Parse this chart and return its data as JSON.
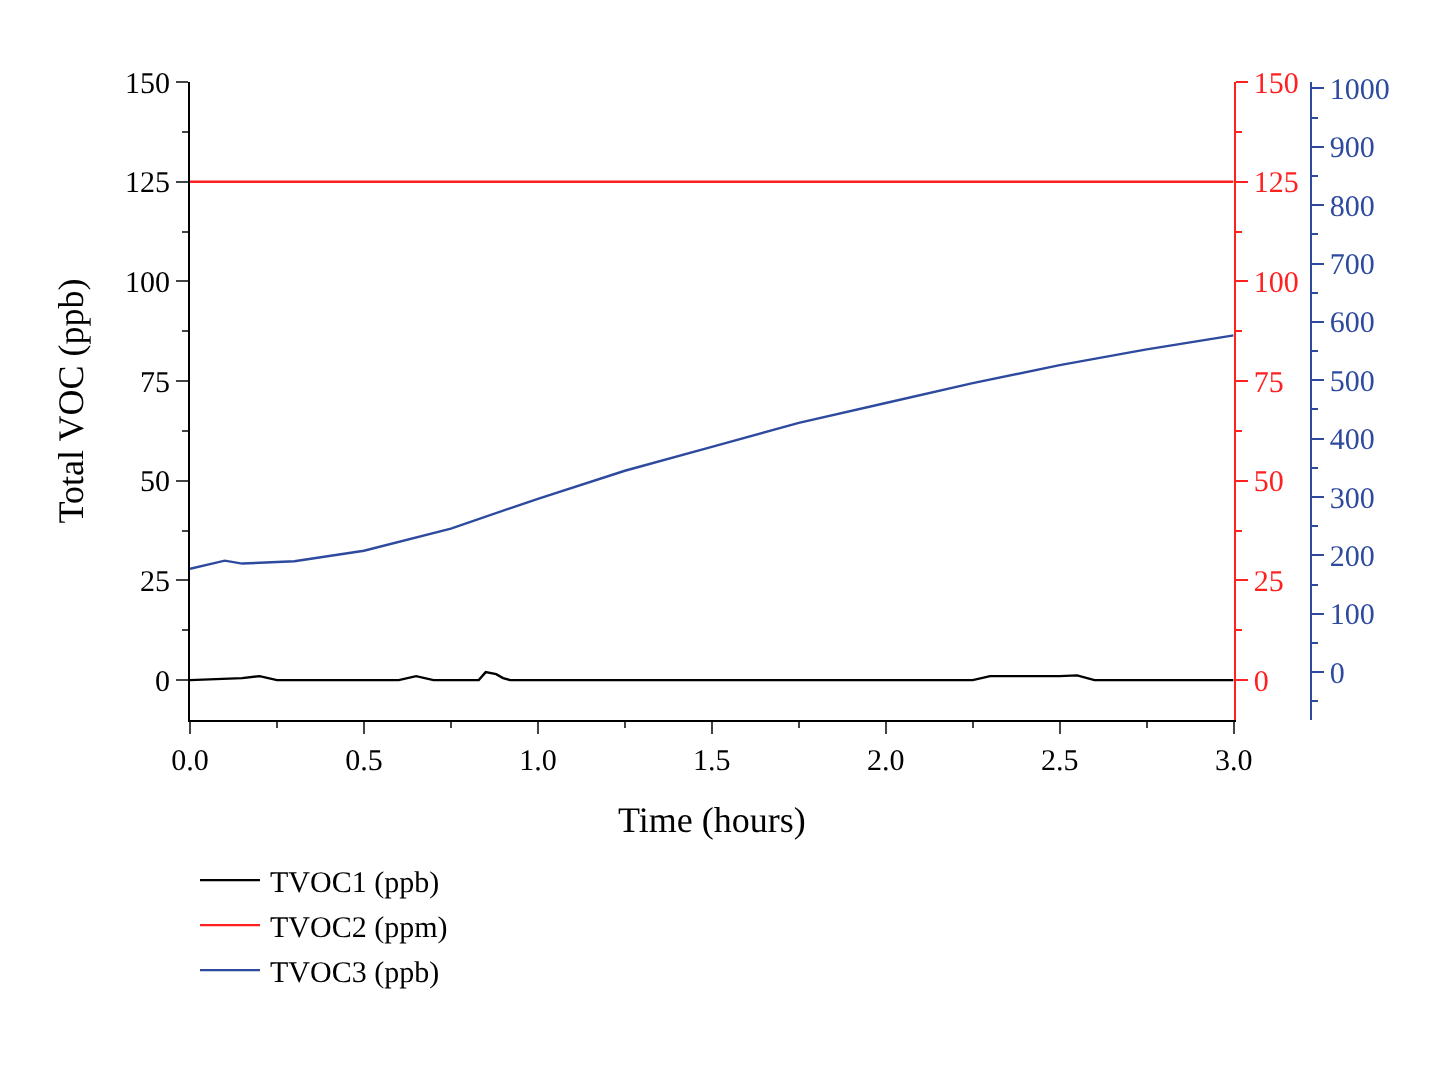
{
  "chart_data": {
    "type": "line",
    "xlabel": "Time (hours)",
    "ylabel": "Total VOC (ppb)",
    "xlim": [
      0,
      3
    ],
    "xticks": [
      {
        "value": 0,
        "label": "0.0"
      },
      0.5,
      {
        "value": 1,
        "label": "1.0"
      },
      1.5,
      {
        "value": 2,
        "label": "2.0"
      },
      2.5,
      {
        "value": 3,
        "label": "3.0"
      }
    ],
    "ylim": [
      -10,
      150
    ],
    "yticks": [
      0,
      25,
      50,
      75,
      100,
      125,
      150
    ],
    "y2lim": [
      -10,
      150
    ],
    "y2ticks": [
      0,
      25,
      50,
      75,
      100,
      125,
      150
    ],
    "y3lim": [
      -82,
      1011
    ],
    "y3ticks": [
      0,
      100,
      200,
      300,
      400,
      500,
      600,
      700,
      800,
      900,
      1000
    ],
    "legend": "bottom",
    "marker": "none",
    "line_style": "solid",
    "series": [
      {
        "name": "TVOC1 (ppb)",
        "color": "#000000",
        "x": [
          0,
          0.15,
          0.2,
          0.25,
          0.6,
          0.65,
          0.7,
          0.83,
          0.85,
          0.88,
          0.9,
          0.92,
          2.25,
          2.3,
          2.5,
          2.55,
          2.6,
          3.0
        ],
        "values": [
          0,
          0.5,
          1,
          0,
          0,
          1,
          0,
          0,
          2,
          1.5,
          0.5,
          0,
          0,
          1,
          1,
          1.2,
          0,
          0
        ]
      },
      {
        "name": "TVOC2 (ppm)",
        "color": "#ff2020",
        "axis": "y2",
        "x": [
          0,
          3.0
        ],
        "values": [
          125,
          125
        ]
      },
      {
        "name": "TVOC3 (ppb)",
        "color": "#2e4a9e",
        "axis": "y3",
        "x": [
          0,
          0.1,
          0.15,
          0.3,
          0.5,
          0.75,
          1.0,
          1.25,
          1.5,
          1.75,
          2.0,
          2.25,
          2.5,
          2.75,
          3.0
        ],
        "values": [
          177,
          191,
          186,
          190,
          208,
          246,
          297,
          345,
          386,
          427,
          461,
          495,
          526,
          553,
          577
        ]
      }
    ]
  }
}
